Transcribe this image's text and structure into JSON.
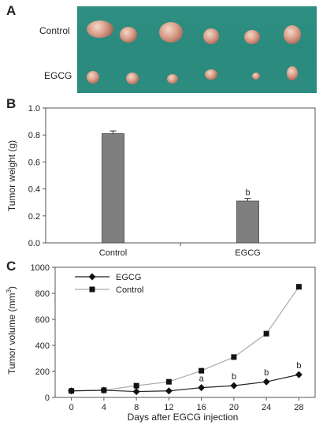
{
  "panels": {
    "a_letter": "A",
    "b_letter": "B",
    "c_letter": "C"
  },
  "photo": {
    "row_labels": [
      "Control",
      "EGCG"
    ]
  },
  "chart_data": [
    {
      "type": "bar",
      "categories": [
        "Control",
        "EGCG"
      ],
      "values": [
        0.81,
        0.31
      ],
      "errors": [
        0.02,
        0.02
      ],
      "annotations": [
        "",
        "b"
      ],
      "ylabel": "Tumor weight (g)",
      "ylim": [
        0,
        1.0
      ],
      "yticks": [
        0,
        0.2,
        0.4,
        0.6,
        0.8,
        1.0
      ],
      "ytick_labels": [
        "0.0",
        "0.2",
        "0.4",
        "0.6",
        "0.8",
        "1.0"
      ],
      "bar_color": "#7f7f7f"
    },
    {
      "type": "line",
      "x": [
        0,
        4,
        8,
        12,
        16,
        20,
        24,
        28
      ],
      "series": [
        {
          "name": "EGCG",
          "marker": "diamond",
          "values": [
            50,
            55,
            45,
            50,
            75,
            90,
            120,
            175
          ],
          "annotations": [
            "",
            "",
            "",
            "",
            "a",
            "b",
            "b",
            "b"
          ]
        },
        {
          "name": "Control",
          "marker": "square",
          "values": [
            50,
            55,
            90,
            120,
            205,
            310,
            490,
            850
          ],
          "annotations": [
            "",
            "",
            "",
            "",
            "",
            "",
            "",
            ""
          ]
        }
      ],
      "xlabel": "Days after EGCG injection",
      "ylabel_main": "Tumor volume (mm",
      "ylabel_sup": "3",
      "ylabel_end": ")",
      "xlim": [
        -2,
        30
      ],
      "ylim": [
        0,
        1000
      ],
      "xticks": [
        0,
        4,
        8,
        12,
        16,
        20,
        24,
        28
      ],
      "yticks": [
        0,
        200,
        400,
        600,
        800,
        1000
      ],
      "legend_placement": "top-left"
    }
  ]
}
